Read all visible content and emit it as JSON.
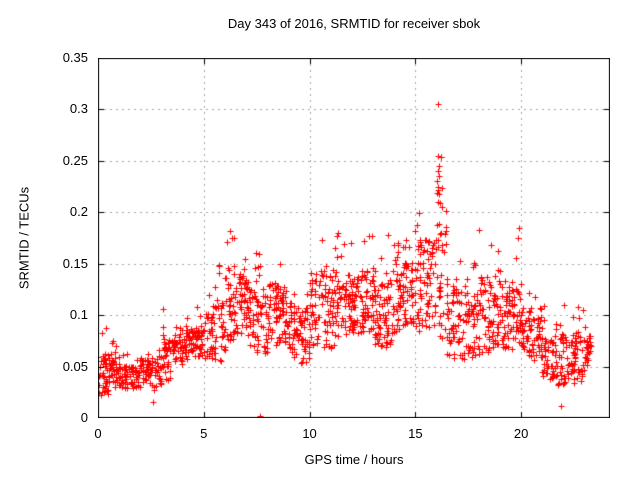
{
  "title": "Day 343 of 2016, SRMTID for receiver sbok",
  "x_axis": {
    "label": "GPS time / hours",
    "tick_values": [
      0,
      5,
      10,
      15,
      20
    ],
    "tick_labels": [
      "0",
      "5",
      "10",
      "15",
      "20"
    ],
    "min": 0,
    "max": 24.2
  },
  "y_axis": {
    "label": "SRMTID / TECUs",
    "tick_values": [
      0,
      0.05,
      0.1,
      0.15,
      0.2,
      0.25,
      0.3,
      0.35
    ],
    "tick_labels": [
      "0",
      "0.05",
      "0.1",
      "0.15",
      "0.2",
      "0.25",
      "0.3",
      "0.35"
    ],
    "min": 0,
    "max": 0.35
  },
  "colors": {
    "marker": "#ff0000",
    "grid": "#a8a8a8",
    "axis": "#000000",
    "background": "#ffffff"
  },
  "chart_data": {
    "type": "scatter",
    "title": "Day 343 of 2016, SRMTID for receiver sbok",
    "xlabel": "GPS time / hours",
    "ylabel": "SRMTID / TECUs",
    "xlim": [
      0,
      24.2
    ],
    "ylim": [
      0,
      0.35
    ],
    "grid": true,
    "grid_style": "dotted",
    "marker": "plus",
    "marker_color": "#ff0000",
    "marker_size_px": 7,
    "seed": 343,
    "bins_format": "hour_start, hour_end, y_min, y_median, y_max, point_count",
    "density_bins": [
      [
        0.0,
        0.5,
        0.02,
        0.042,
        0.09,
        40
      ],
      [
        0.5,
        1.0,
        0.02,
        0.045,
        0.075,
        40
      ],
      [
        1.0,
        1.5,
        0.025,
        0.04,
        0.065,
        35
      ],
      [
        1.5,
        2.0,
        0.02,
        0.04,
        0.06,
        35
      ],
      [
        2.0,
        2.5,
        0.025,
        0.045,
        0.065,
        35
      ],
      [
        2.5,
        3.0,
        0.015,
        0.045,
        0.08,
        35
      ],
      [
        3.0,
        3.5,
        0.03,
        0.06,
        0.12,
        35
      ],
      [
        3.5,
        4.0,
        0.04,
        0.065,
        0.09,
        35
      ],
      [
        4.0,
        4.5,
        0.04,
        0.07,
        0.1,
        35
      ],
      [
        4.5,
        5.0,
        0.05,
        0.075,
        0.11,
        35
      ],
      [
        5.0,
        5.5,
        0.04,
        0.08,
        0.12,
        35
      ],
      [
        5.5,
        6.0,
        0.04,
        0.085,
        0.15,
        35
      ],
      [
        6.0,
        6.5,
        0.05,
        0.11,
        0.185,
        40
      ],
      [
        6.5,
        7.0,
        0.05,
        0.11,
        0.18,
        40
      ],
      [
        7.0,
        7.5,
        0.05,
        0.1,
        0.175,
        40
      ],
      [
        7.5,
        8.0,
        0.04,
        0.095,
        0.16,
        38
      ],
      [
        8.0,
        8.5,
        0.05,
        0.1,
        0.165,
        40
      ],
      [
        8.5,
        9.0,
        0.05,
        0.1,
        0.15,
        40
      ],
      [
        9.0,
        9.5,
        0.04,
        0.085,
        0.14,
        38
      ],
      [
        9.5,
        10.0,
        0.03,
        0.08,
        0.13,
        38
      ],
      [
        10.0,
        10.5,
        0.05,
        0.1,
        0.175,
        40
      ],
      [
        10.5,
        11.0,
        0.05,
        0.105,
        0.19,
        40
      ],
      [
        11.0,
        11.5,
        0.05,
        0.105,
        0.185,
        40
      ],
      [
        11.5,
        12.0,
        0.06,
        0.11,
        0.17,
        40
      ],
      [
        12.0,
        12.5,
        0.06,
        0.11,
        0.165,
        42
      ],
      [
        12.5,
        13.0,
        0.06,
        0.115,
        0.18,
        42
      ],
      [
        13.0,
        13.5,
        0.05,
        0.1,
        0.165,
        40
      ],
      [
        13.5,
        14.0,
        0.05,
        0.105,
        0.19,
        40
      ],
      [
        14.0,
        14.5,
        0.05,
        0.115,
        0.17,
        42
      ],
      [
        14.5,
        15.0,
        0.06,
        0.12,
        0.18,
        42
      ],
      [
        15.0,
        15.5,
        0.04,
        0.13,
        0.21,
        42
      ],
      [
        15.5,
        16.0,
        0.04,
        0.13,
        0.2,
        40
      ],
      [
        16.0,
        16.5,
        0.04,
        0.135,
        0.26,
        40
      ],
      [
        16.5,
        17.0,
        0.035,
        0.095,
        0.17,
        38
      ],
      [
        17.0,
        17.5,
        0.04,
        0.09,
        0.16,
        38
      ],
      [
        17.5,
        18.0,
        0.04,
        0.09,
        0.155,
        38
      ],
      [
        18.0,
        18.5,
        0.05,
        0.1,
        0.19,
        40
      ],
      [
        18.5,
        19.0,
        0.05,
        0.1,
        0.175,
        40
      ],
      [
        19.0,
        19.5,
        0.05,
        0.095,
        0.15,
        38
      ],
      [
        19.5,
        20.0,
        0.05,
        0.1,
        0.175,
        38
      ],
      [
        20.0,
        20.5,
        0.04,
        0.085,
        0.13,
        38
      ],
      [
        20.5,
        21.0,
        0.04,
        0.075,
        0.12,
        36
      ],
      [
        21.0,
        21.5,
        0.03,
        0.06,
        0.11,
        36
      ],
      [
        21.5,
        22.0,
        0.01,
        0.055,
        0.1,
        36
      ],
      [
        22.0,
        22.5,
        0.03,
        0.055,
        0.11,
        36
      ],
      [
        22.5,
        23.0,
        0.03,
        0.06,
        0.12,
        36
      ],
      [
        23.0,
        23.3,
        0.04,
        0.065,
        0.1,
        25
      ]
    ],
    "outliers": [
      [
        16.05,
        0.305
      ],
      [
        16.08,
        0.255
      ],
      [
        16.12,
        0.245
      ],
      [
        16.06,
        0.24
      ],
      [
        16.1,
        0.235
      ],
      [
        16.04,
        0.23
      ],
      [
        16.09,
        0.225
      ],
      [
        16.11,
        0.218
      ],
      [
        16.05,
        0.21
      ],
      [
        7.66,
        0.002
      ],
      [
        21.9,
        0.012
      ],
      [
        2.62,
        0.016
      ],
      [
        19.9,
        0.185
      ]
    ]
  }
}
